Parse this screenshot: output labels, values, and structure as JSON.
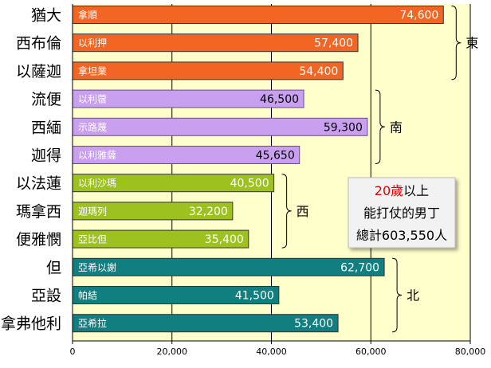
{
  "chart_data": {
    "type": "bar",
    "orientation": "horizontal",
    "categories": [
      "猶大",
      "西布倫",
      "以薩迦",
      "流便",
      "西緬",
      "迦得",
      "以法蓮",
      "瑪拿西",
      "便雅憫",
      "但",
      "亞設",
      "拿弗他利"
    ],
    "leaders": [
      "拿順",
      "以利押",
      "拿坦業",
      "以利蓿",
      "示路蔑",
      "以利雅薩",
      "以利沙瑪",
      "迦瑪列",
      "亞比但",
      "亞希以謝",
      "帕結",
      "亞希拉"
    ],
    "values": [
      74600,
      57400,
      54400,
      46500,
      59300,
      45650,
      40500,
      32200,
      35400,
      62700,
      41500,
      53400
    ],
    "value_labels": [
      "74,600",
      "57,400",
      "54,400",
      "46,500",
      "59,300",
      "45,650",
      "40,500",
      "32,200",
      "35,400",
      "62,700",
      "41,500",
      "53,400"
    ],
    "groups": [
      {
        "name": "東",
        "start": 0,
        "end": 2,
        "color": "#f26522"
      },
      {
        "name": "南",
        "start": 3,
        "end": 5,
        "color": "#c9a0f0"
      },
      {
        "name": "西",
        "start": 6,
        "end": 8,
        "color": "#9dc11e"
      },
      {
        "name": "北",
        "start": 9,
        "end": 11,
        "color": "#117e80"
      }
    ],
    "xlim": [
      0,
      80000
    ],
    "xticks": [
      0,
      20000,
      40000,
      60000,
      80000
    ],
    "xtick_labels": [
      "0",
      "20,000",
      "40,000",
      "60,000",
      "80,000"
    ],
    "plot_background": "#ffffcc",
    "grid": true
  },
  "annotation": {
    "highlight": "20歲",
    "line1_suffix": "以上",
    "line2": "能打仗的男丁",
    "line3": "總計603,550人",
    "highlight_color": "#dd0000"
  }
}
